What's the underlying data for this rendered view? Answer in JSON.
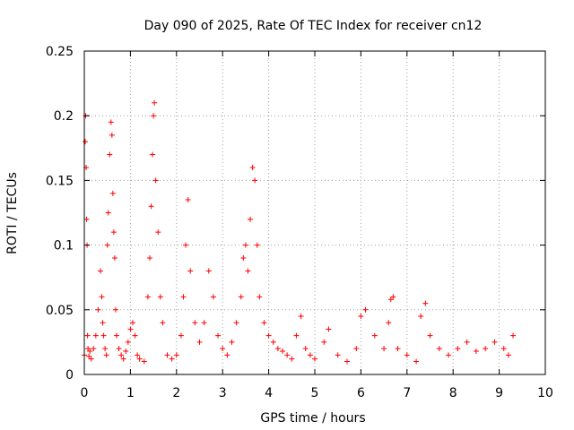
{
  "chart_data": {
    "type": "scatter",
    "title": "Day 090 of 2025, Rate Of TEC Index for receiver cn12",
    "xlabel": "GPS time / hours",
    "ylabel": "ROTI / TECUs",
    "xlim": [
      0,
      10
    ],
    "ylim": [
      0,
      0.25
    ],
    "x_ticks": [
      "0",
      "1",
      "2",
      "3",
      "4",
      "5",
      "6",
      "7",
      "8",
      "9",
      "10"
    ],
    "y_ticks": [
      "0",
      "0.05",
      "0.1",
      "0.15",
      "0.2",
      "0.25"
    ],
    "grid": true,
    "marker": "plus",
    "color": "#ff0000",
    "series": [
      {
        "name": "ROTI",
        "x": [
          0.0,
          0.02,
          0.03,
          0.04,
          0.05,
          0.06,
          0.07,
          0.08,
          0.1,
          0.12,
          0.15,
          0.2,
          0.25,
          0.3,
          0.35,
          0.38,
          0.4,
          0.42,
          0.45,
          0.48,
          0.5,
          0.52,
          0.55,
          0.58,
          0.6,
          0.62,
          0.64,
          0.66,
          0.68,
          0.7,
          0.75,
          0.8,
          0.85,
          0.9,
          0.95,
          1.0,
          1.05,
          1.1,
          1.15,
          1.2,
          1.3,
          1.38,
          1.42,
          1.45,
          1.48,
          1.5,
          1.52,
          1.55,
          1.6,
          1.65,
          1.7,
          1.8,
          1.9,
          2.0,
          2.1,
          2.15,
          2.2,
          2.25,
          2.3,
          2.4,
          2.5,
          2.6,
          2.7,
          2.8,
          2.9,
          3.0,
          3.1,
          3.2,
          3.3,
          3.4,
          3.45,
          3.5,
          3.55,
          3.6,
          3.65,
          3.7,
          3.75,
          3.8,
          3.9,
          4.0,
          4.1,
          4.2,
          4.3,
          4.4,
          4.5,
          4.6,
          4.7,
          4.8,
          4.9,
          5.0,
          5.2,
          5.3,
          5.5,
          5.7,
          5.9,
          6.0,
          6.1,
          6.3,
          6.5,
          6.6,
          6.65,
          6.7,
          6.8,
          7.0,
          7.2,
          7.3,
          7.4,
          7.5,
          7.7,
          7.9,
          8.1,
          8.3,
          8.5,
          8.7,
          8.9,
          9.1,
          9.2,
          9.3
        ],
        "values": [
          0.015,
          0.18,
          0.2,
          0.16,
          0.12,
          0.1,
          0.03,
          0.02,
          0.014,
          0.018,
          0.012,
          0.02,
          0.03,
          0.05,
          0.08,
          0.06,
          0.04,
          0.03,
          0.02,
          0.015,
          0.1,
          0.125,
          0.17,
          0.195,
          0.185,
          0.14,
          0.11,
          0.09,
          0.05,
          0.03,
          0.02,
          0.015,
          0.012,
          0.018,
          0.025,
          0.035,
          0.04,
          0.03,
          0.015,
          0.012,
          0.01,
          0.06,
          0.09,
          0.13,
          0.17,
          0.2,
          0.21,
          0.15,
          0.11,
          0.06,
          0.04,
          0.015,
          0.012,
          0.015,
          0.03,
          0.06,
          0.1,
          0.135,
          0.08,
          0.04,
          0.025,
          0.04,
          0.08,
          0.06,
          0.03,
          0.02,
          0.015,
          0.025,
          0.04,
          0.06,
          0.09,
          0.1,
          0.08,
          0.12,
          0.16,
          0.15,
          0.1,
          0.06,
          0.04,
          0.03,
          0.025,
          0.02,
          0.018,
          0.015,
          0.012,
          0.03,
          0.045,
          0.02,
          0.015,
          0.012,
          0.025,
          0.035,
          0.015,
          0.01,
          0.02,
          0.045,
          0.05,
          0.03,
          0.02,
          0.04,
          0.058,
          0.06,
          0.02,
          0.015,
          0.01,
          0.045,
          0.055,
          0.03,
          0.02,
          0.015,
          0.02,
          0.025,
          0.018,
          0.02,
          0.025,
          0.02,
          0.015,
          0.03
        ]
      }
    ]
  }
}
